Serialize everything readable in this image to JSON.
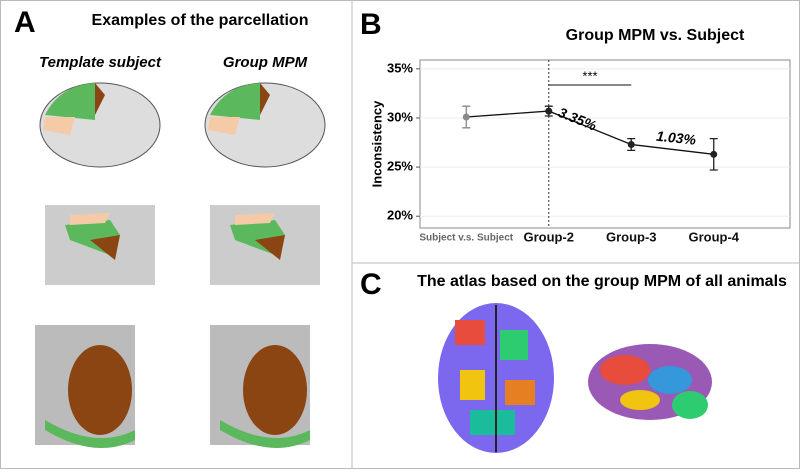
{
  "panel_a": {
    "letter": "A",
    "title": "Examples of the parcellation",
    "columns": [
      "Template subject",
      "Group MPM"
    ]
  },
  "chart_data": {
    "type": "line",
    "letter": "B",
    "title": "Group MPM  vs. Subject",
    "y_label": "Inconsistency",
    "categories": [
      "Subject v.s. Subject",
      "Group-2",
      "Group-3",
      "Group-4"
    ],
    "series": [
      {
        "color": "#111111",
        "point_colors": [
          "#8a8a8a",
          "#222222",
          "#222222",
          "#222222"
        ],
        "values": [
          30.1,
          30.7,
          27.3,
          26.3
        ],
        "errors": [
          1.1,
          0.5,
          0.6,
          1.6
        ]
      }
    ],
    "ylim": [
      18.8,
      35.9
    ],
    "yticks": [
      {
        "value": 20,
        "label": "20%"
      },
      {
        "value": 25,
        "label": "25%"
      },
      {
        "value": 30,
        "label": "30%"
      },
      {
        "value": 35,
        "label": "35%"
      }
    ],
    "grid": true,
    "annotations": [
      "***",
      "3.35%",
      "1.03%"
    ]
  },
  "panel_c": {
    "letter": "C",
    "title": "The atlas based on the group MPM of all animals"
  }
}
